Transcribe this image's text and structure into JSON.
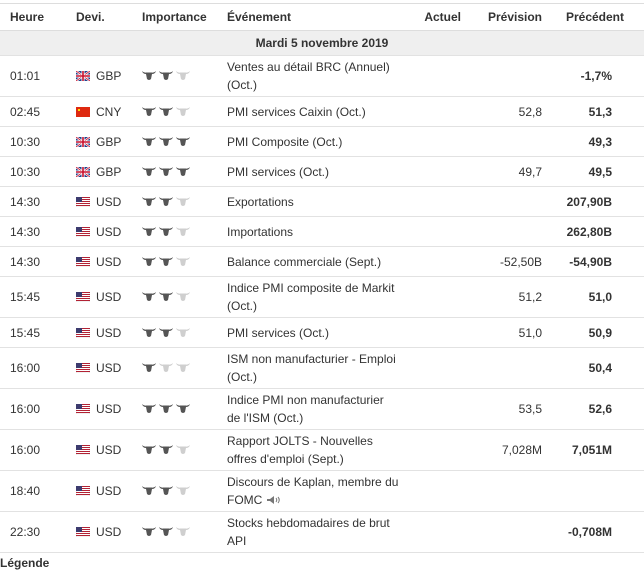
{
  "header": {
    "time": "Heure",
    "currency": "Devi.",
    "importance": "Importance",
    "event": "Événement",
    "actual": "Actuel",
    "forecast": "Prévision",
    "previous": "Précédent"
  },
  "date": "Mardi 5 novembre 2019",
  "rows": [
    {
      "time": "01:01",
      "flag": "gb",
      "currency": "GBP",
      "importance": 2,
      "event": "Ventes au détail BRC (Annuel) (Oct.)",
      "previous": "-1,7%"
    },
    {
      "time": "02:45",
      "flag": "cn",
      "currency": "CNY",
      "importance": 2,
      "event": "PMI services Caixin (Oct.)",
      "forecast": "52,8",
      "previous": "51,3"
    },
    {
      "time": "10:30",
      "flag": "gb",
      "currency": "GBP",
      "importance": 3,
      "event": "PMI Composite (Oct.)",
      "previous": "49,3"
    },
    {
      "time": "10:30",
      "flag": "gb",
      "currency": "GBP",
      "importance": 3,
      "event": "PMI services (Oct.)",
      "forecast": "49,7",
      "previous": "49,5"
    },
    {
      "time": "14:30",
      "flag": "us",
      "currency": "USD",
      "importance": 2,
      "event": "Exportations",
      "previous": "207,90B"
    },
    {
      "time": "14:30",
      "flag": "us",
      "currency": "USD",
      "importance": 2,
      "event": "Importations",
      "previous": "262,80B"
    },
    {
      "time": "14:30",
      "flag": "us",
      "currency": "USD",
      "importance": 2,
      "event": "Balance commerciale (Sept.)",
      "forecast": "-52,50B",
      "previous": "-54,90B"
    },
    {
      "time": "15:45",
      "flag": "us",
      "currency": "USD",
      "importance": 2,
      "event": "Indice PMI composite de Markit (Oct.)",
      "forecast": "51,2",
      "previous": "51,0"
    },
    {
      "time": "15:45",
      "flag": "us",
      "currency": "USD",
      "importance": 2,
      "event": "PMI services (Oct.)",
      "forecast": "51,0",
      "previous": "50,9"
    },
    {
      "time": "16:00",
      "flag": "us",
      "currency": "USD",
      "importance": 1,
      "event": "ISM non manufacturier - Emploi (Oct.)",
      "previous": "50,4"
    },
    {
      "time": "16:00",
      "flag": "us",
      "currency": "USD",
      "importance": 3,
      "event": "Indice PMI non manufacturier de l'ISM (Oct.)",
      "forecast": "53,5",
      "previous": "52,6"
    },
    {
      "time": "16:00",
      "flag": "us",
      "currency": "USD",
      "importance": 2,
      "event": "Rapport JOLTS - Nouvelles offres d'emploi (Sept.)",
      "forecast": "7,028M",
      "previous": "7,051M"
    },
    {
      "time": "18:40",
      "flag": "us",
      "currency": "USD",
      "importance": 2,
      "event": "Discours de Kaplan, membre du FOMC",
      "speech": true
    },
    {
      "time": "22:30",
      "flag": "us",
      "currency": "USD",
      "importance": 2,
      "event": "Stocks hebdomadaires de brut API",
      "previous": "-0,708M"
    }
  ],
  "legend": "Légende"
}
